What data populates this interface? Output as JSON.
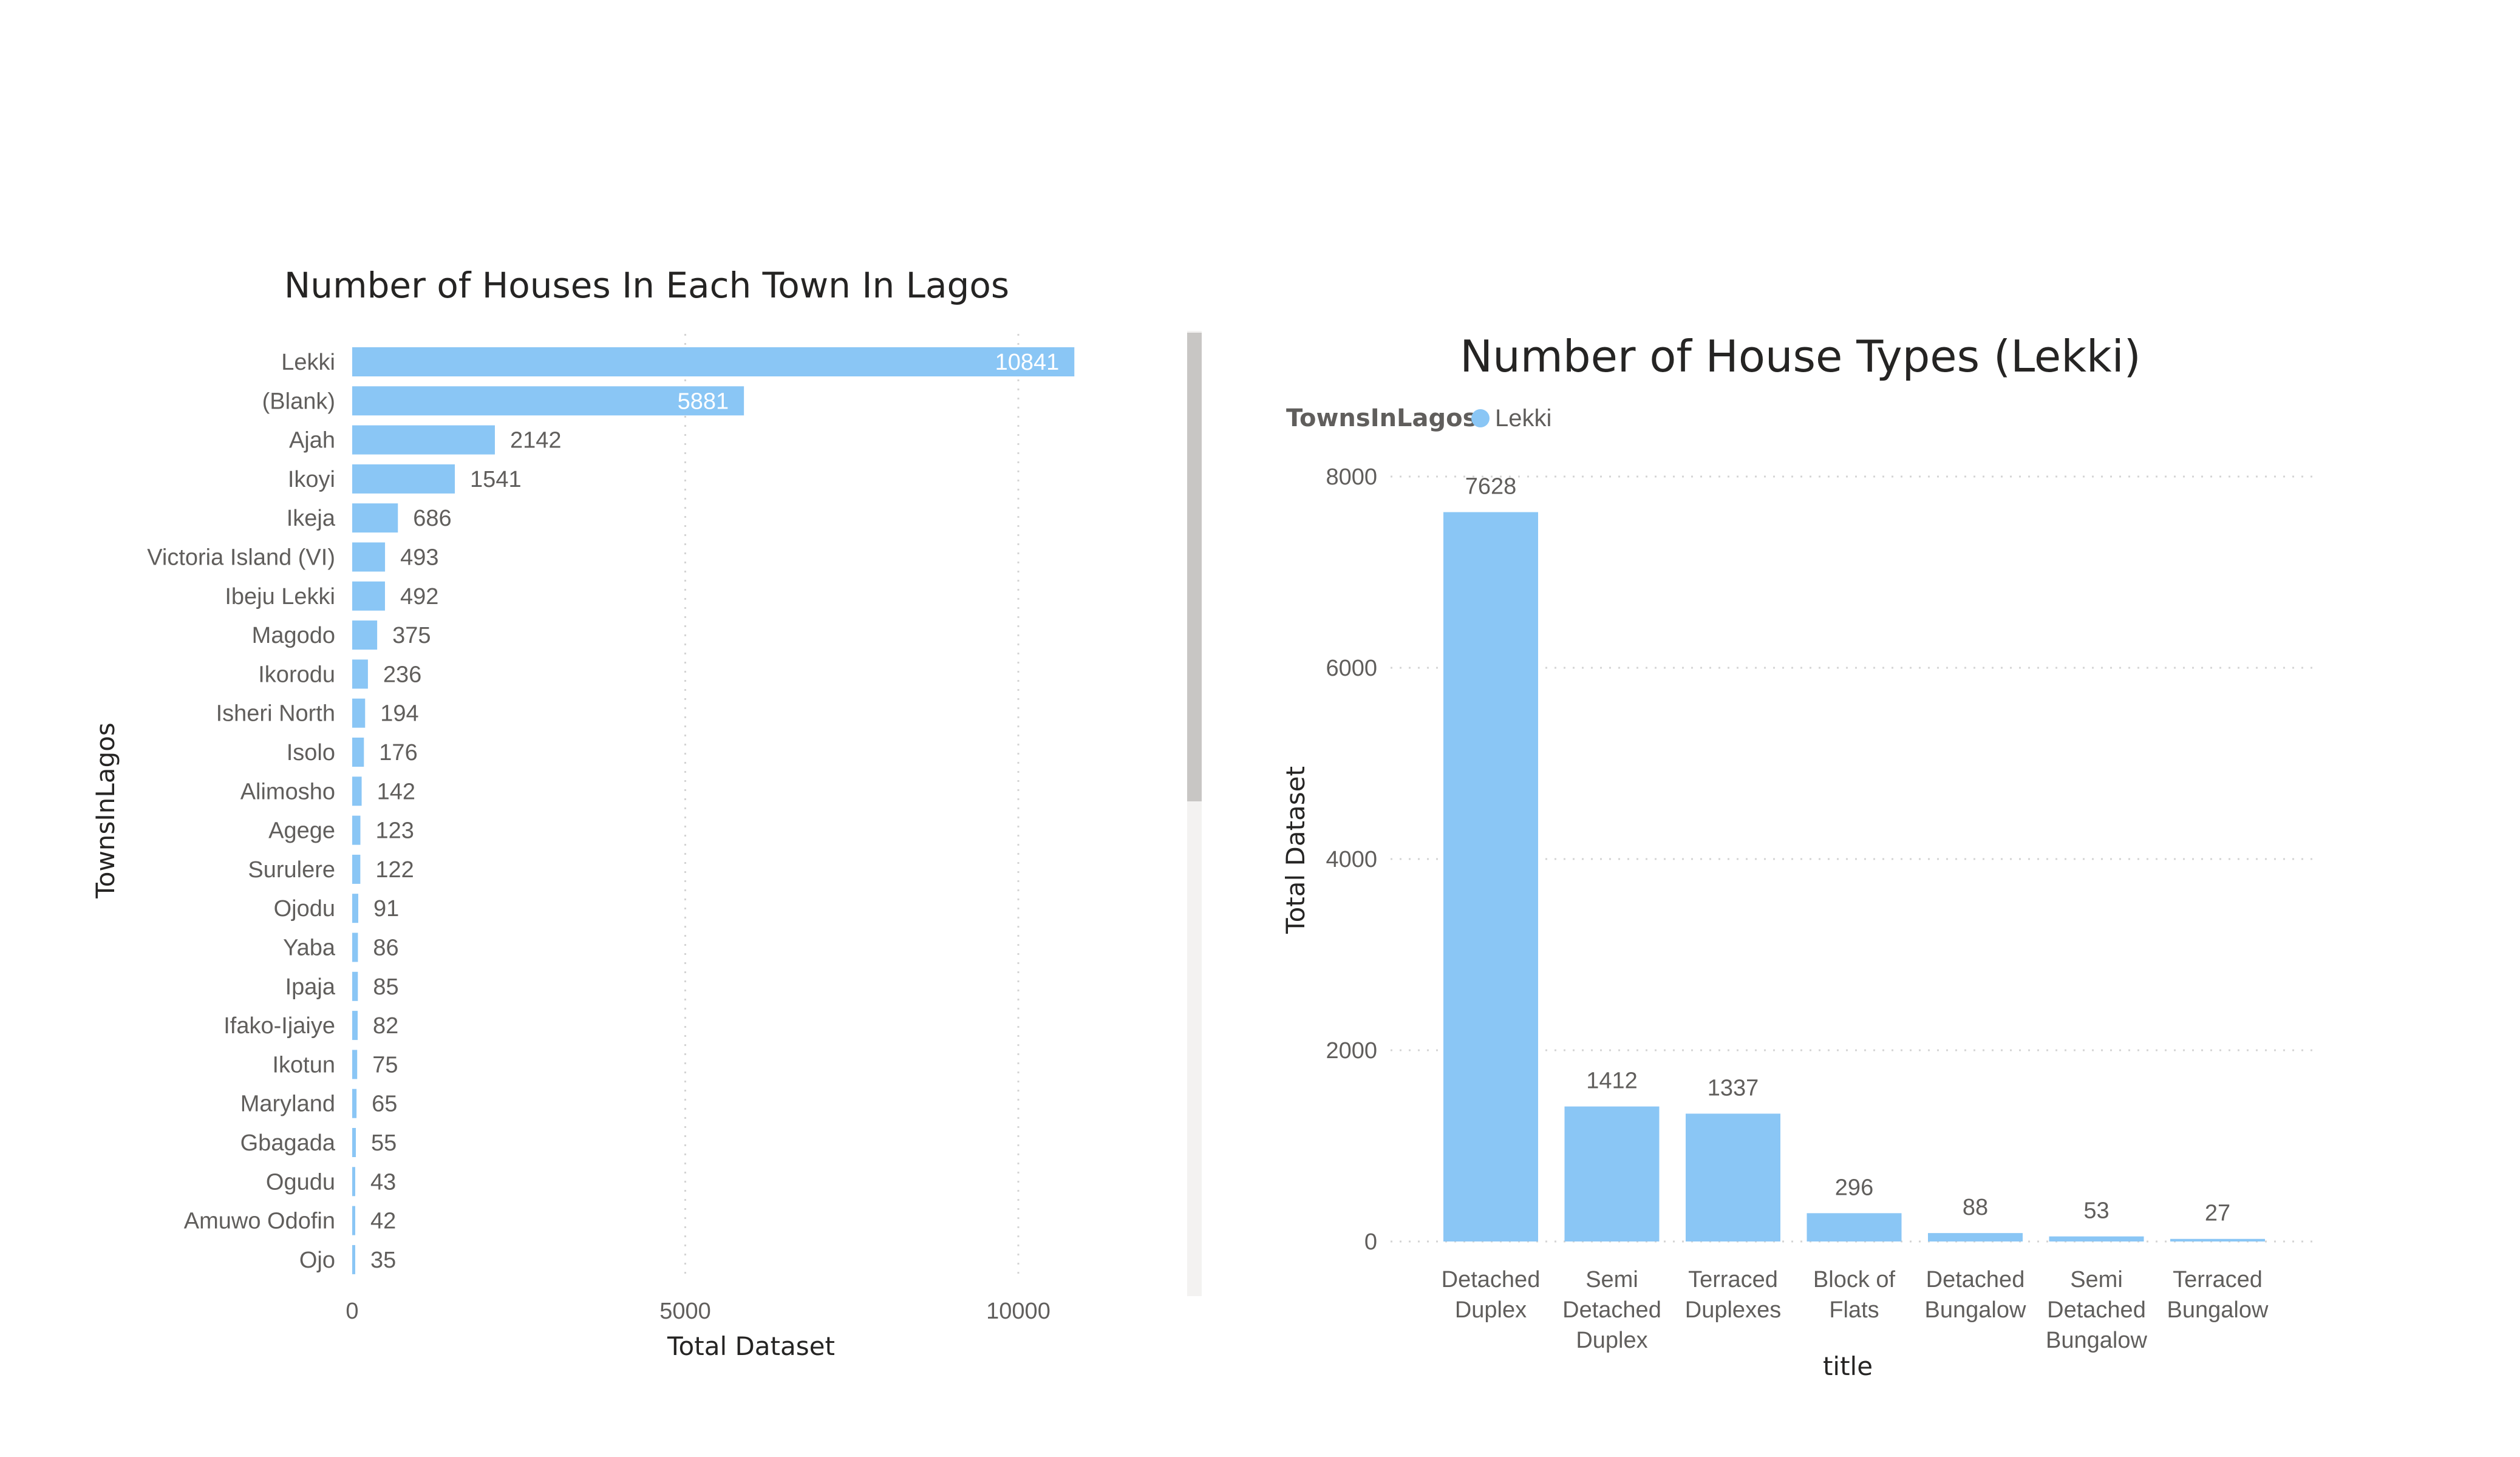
{
  "chart_data": [
    {
      "type": "bar",
      "orientation": "horizontal",
      "title": "Number of Houses In Each Town In Lagos",
      "xlabel": "Total Dataset",
      "ylabel": "TownsInLagos",
      "xlim": [
        0,
        12000
      ],
      "xticks": [
        "0",
        "5000",
        "10000"
      ],
      "grid": true,
      "color": "#8AC6F5",
      "categories": [
        "Lekki",
        "(Blank)",
        "Ajah",
        "Ikoyi",
        "Ikeja",
        "Victoria Island (VI)",
        "Ibeju Lekki",
        "Magodo",
        "Ikorodu",
        "Isheri North",
        "Isolo",
        "Alimosho",
        "Agege",
        "Surulere",
        "Ojodu",
        "Yaba",
        "Ipaja",
        "Ifako-Ijaiye",
        "Ikotun",
        "Maryland",
        "Gbagada",
        "Ogudu",
        "Amuwo Odofin",
        "Ojo"
      ],
      "values": [
        10841,
        5881,
        2142,
        1541,
        686,
        493,
        492,
        375,
        236,
        194,
        176,
        142,
        123,
        122,
        91,
        86,
        85,
        82,
        75,
        65,
        55,
        43,
        42,
        35
      ]
    },
    {
      "type": "bar",
      "orientation": "vertical",
      "title": "Number of House Types (Lekki)",
      "xlabel": "title",
      "ylabel": "Total Dataset",
      "ylim": [
        0,
        8000
      ],
      "yticks": [
        "0",
        "2000",
        "4000",
        "6000",
        "8000"
      ],
      "grid": true,
      "color": "#8AC6F5",
      "legend": {
        "title": "TownsInLagos",
        "items": [
          "Lekki"
        ],
        "position": "top-left"
      },
      "categories": [
        [
          "Detached",
          "Duplex"
        ],
        [
          "Semi",
          "Detached",
          "Duplex"
        ],
        [
          "Terraced",
          "Duplexes"
        ],
        [
          "Block of",
          "Flats"
        ],
        [
          "Detached",
          "Bungalow"
        ],
        [
          "Semi",
          "Detached",
          "Bungalow"
        ],
        [
          "Terraced",
          "Bungalow"
        ]
      ],
      "values": [
        7628,
        1412,
        1337,
        296,
        88,
        53,
        27
      ]
    }
  ]
}
